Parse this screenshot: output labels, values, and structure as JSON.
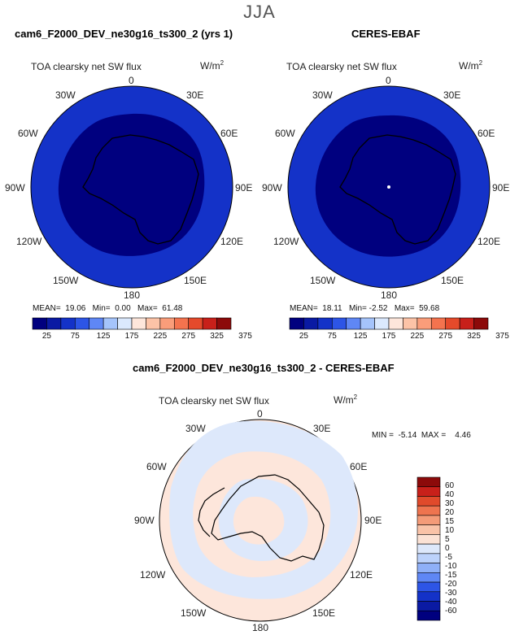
{
  "season": "JJA",
  "colors": {
    "land_outline": "#000000",
    "abs_scale": [
      "#00007f",
      "#0a1aa3",
      "#1432c8",
      "#2d55e6",
      "#5f87f5",
      "#a5c4fb",
      "#dbe9fd",
      "#fde6db",
      "#fcc3a7",
      "#fa9d7a",
      "#f4734e",
      "#e54a2b",
      "#c8201a",
      "#8c0a0a"
    ],
    "diff_scale": [
      "#00007f",
      "#0a1aa3",
      "#1432c8",
      "#2d55e6",
      "#5f87f5",
      "#8fb0f8",
      "#bcd2fb",
      "#dde8fb",
      "#fbe2d5",
      "#f9c3a8",
      "#f49b78",
      "#ee744f",
      "#e04a2b",
      "#c8201a",
      "#8c0a0a"
    ]
  },
  "panels": [
    {
      "title": "cam6_F2000_DEV_ne30g16_ts300_2 (yrs 1)",
      "variable": "TOA clearsky net SW flux",
      "unit": "W/m",
      "unit_exp": "2",
      "stats": {
        "mean_label": "MEAN=",
        "mean": "19.06",
        "min_label": "Min=",
        "min": "0.00",
        "max_label": "Max=",
        "max": "61.48"
      }
    },
    {
      "title": "CERES-EBAF",
      "variable": "TOA clearsky net SW flux",
      "unit": "W/m",
      "unit_exp": "2",
      "stats": {
        "mean_label": "MEAN=",
        "mean": "18.11",
        "min_label": "Min=",
        "min": "-2.52",
        "max_label": "Max=",
        "max": "59.68"
      }
    }
  ],
  "abs_colorbar_labels": [
    "25",
    "75",
    "125",
    "175",
    "225",
    "275",
    "325",
    "375"
  ],
  "diff": {
    "title": "cam6_F2000_DEV_ne30g16_ts300_2 - CERES-EBAF",
    "variable": "TOA clearsky net SW flux",
    "unit": "W/m",
    "unit_exp": "2",
    "min_label": "MIN =",
    "min": "-5.14",
    "max_label": "MAX =",
    "max": "4.46",
    "colorbar_labels": [
      "60",
      "40",
      "30",
      "20",
      "15",
      "10",
      "5",
      "0",
      "-5",
      "-10",
      "-15",
      "-20",
      "-30",
      "-40",
      "-60"
    ]
  },
  "longitudes": {
    "top": "0",
    "top_right": "30E",
    "right_upper": "60E",
    "right": "90E",
    "right_lower": "120E",
    "bottom_right": "150E",
    "bottom": "180",
    "bottom_left": "150W",
    "left_lower": "120W",
    "left": "90W",
    "left_upper": "60W",
    "top_left": "30W"
  }
}
